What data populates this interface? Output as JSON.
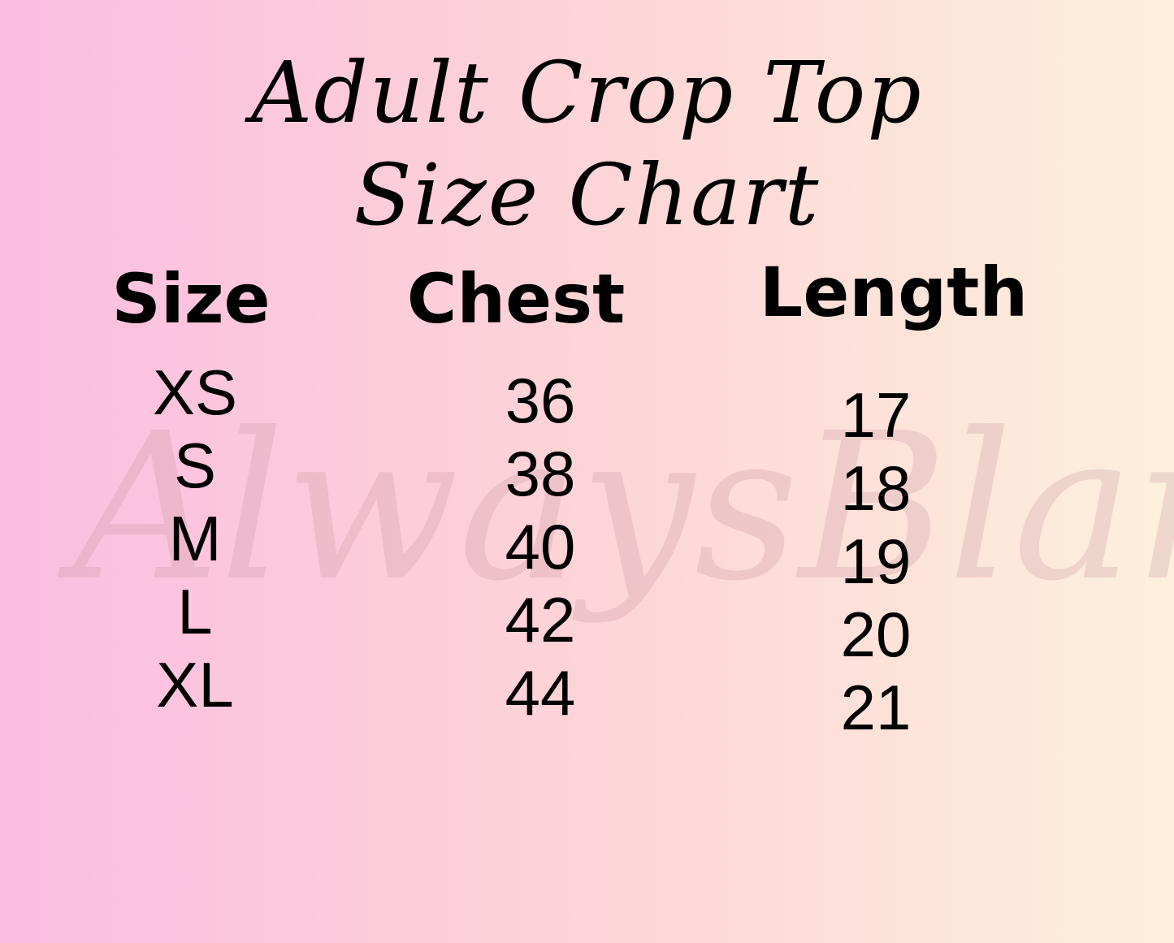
{
  "title": {
    "line1": "Adult Crop Top",
    "line2": "Size Chart"
  },
  "headers": {
    "size": "Size",
    "chest": "Chest",
    "length": "Length"
  },
  "rows": {
    "sizes": [
      "XS",
      "S",
      "M",
      "L",
      "XL"
    ],
    "chest": [
      "36",
      "38",
      "40",
      "42",
      "44"
    ],
    "length": [
      "17",
      "18",
      "19",
      "20",
      "21"
    ]
  },
  "watermark": "AlwaysBlanks",
  "colors": {
    "gradient_left": "#fbbde0",
    "gradient_right": "#fdf0dc",
    "text": "#000000"
  }
}
